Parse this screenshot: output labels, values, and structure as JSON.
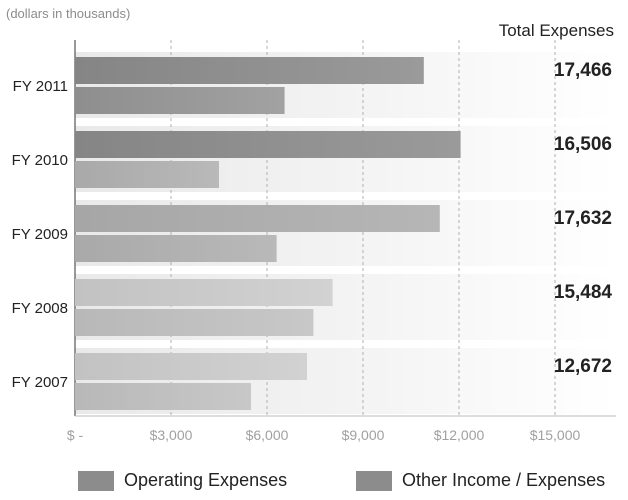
{
  "chart_data": {
    "type": "bar",
    "orientation": "horizontal",
    "note": "(dollars in thousands)",
    "total_header": "Total Expenses",
    "categories": [
      "FY 2011",
      "FY 2010",
      "FY 2009",
      "FY 2008",
      "FY 2007"
    ],
    "series": [
      {
        "name": "Operating Expenses",
        "values": [
          10900,
          12050,
          11400,
          8050,
          7250
        ]
      },
      {
        "name": "Other Income / Expenses",
        "values": [
          6550,
          4500,
          6300,
          7450,
          5500
        ]
      }
    ],
    "totals": [
      "17,466",
      "16,506",
      "17,632",
      "15,484",
      "12,672"
    ],
    "x_ticks": [
      {
        "value": 0,
        "label": "$ -"
      },
      {
        "value": 3000,
        "label": "$3,000"
      },
      {
        "value": 6000,
        "label": "$6,000"
      },
      {
        "value": 9000,
        "label": "$9,000"
      },
      {
        "value": 12000,
        "label": "$12,000"
      },
      {
        "value": 15000,
        "label": "$15,000"
      }
    ],
    "xlim": [
      0,
      16500
    ],
    "grid": "vertical dashed",
    "legend_position": "bottom",
    "colors": {
      "operating_dark": "#8f8f8f",
      "operating_light": "#cdcdcd",
      "other_dark": "#959595",
      "other_light": "#c5c5c5",
      "band": "#f0f0f0",
      "legend_operating": "#8c8c8c",
      "legend_other": "#8c8c8c"
    }
  }
}
